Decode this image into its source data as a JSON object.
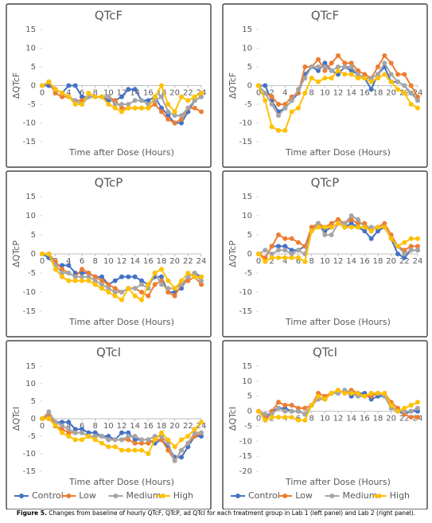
{
  "caption": {
    "label": "Figure 5.",
    "text": "Changes from baseline of hourly QTcF, QTcP, ad QTcI for each treatment group in Lab 1 (left panel) and Lab 2 (right panel)."
  },
  "chart_data": [
    {
      "type": "line",
      "title": "QTcF",
      "y_label": "ΔQTcF",
      "x_label": "Time after Dose (Hours)",
      "x": [
        0,
        1,
        2,
        3,
        4,
        5,
        6,
        7,
        8,
        9,
        10,
        11,
        12,
        13,
        14,
        15,
        16,
        17,
        18,
        19,
        20,
        21,
        22,
        23,
        24
      ],
      "xlim": [
        0,
        24
      ],
      "xticks": [
        0,
        2,
        4,
        6,
        8,
        10,
        12,
        14,
        16,
        18,
        20,
        22,
        24
      ],
      "ylim": [
        -15,
        15
      ],
      "yticks": [
        15,
        10,
        5,
        0,
        -5,
        -10,
        -15
      ],
      "series": [
        {
          "color": "#4472c4",
          "values": [
            0,
            0,
            -1,
            -2,
            0,
            0,
            -3,
            -3,
            -3,
            -3,
            -4,
            -4,
            -3,
            -1,
            -1,
            -4,
            -4,
            -3,
            -6,
            -8,
            -10,
            -10,
            -7,
            -4,
            -3
          ]
        },
        {
          "color": "#ed7d31",
          "values": [
            0,
            1,
            -2,
            -3,
            -3,
            -4,
            -4,
            -3,
            -3,
            -3,
            -3,
            -4,
            -6,
            -6,
            -6,
            -6,
            -6,
            -5,
            -7,
            -9,
            -10,
            -9,
            -6,
            -6,
            -7
          ]
        },
        {
          "color": "#a5a5a5",
          "values": [
            0,
            1,
            -1,
            -2,
            -3,
            -4,
            -5,
            -3,
            -3,
            -3,
            -3,
            -5,
            -5,
            -5,
            -4,
            -4,
            -5,
            -4,
            -3,
            -7,
            -8,
            -8,
            -6,
            -4,
            -3
          ]
        },
        {
          "color": "#ffc000",
          "values": [
            0,
            1,
            -1,
            -2,
            -3,
            -5,
            -5,
            -2,
            -3,
            -3,
            -5,
            -6,
            -7,
            -6,
            -6,
            -6,
            -6,
            -3,
            0,
            -5,
            -7,
            -3,
            -4,
            -3,
            -2
          ]
        }
      ]
    },
    {
      "type": "line",
      "title": "QTcF",
      "y_label": "ΔQTcF",
      "x_label": "Time after Dose (Hours)",
      "x": [
        0,
        1,
        2,
        3,
        4,
        5,
        6,
        7,
        8,
        9,
        10,
        11,
        12,
        13,
        14,
        15,
        16,
        17,
        18,
        19,
        20,
        21,
        22,
        23,
        24
      ],
      "xlim": [
        0,
        24
      ],
      "xticks": [
        0,
        2,
        4,
        6,
        8,
        10,
        12,
        14,
        16,
        18,
        20,
        22,
        24
      ],
      "ylim": [
        -15,
        15
      ],
      "yticks": [
        15,
        10,
        5,
        0,
        -5,
        -10,
        -15
      ],
      "series": [
        {
          "color": "#4472c4",
          "values": [
            0,
            0,
            -4,
            -7,
            -6,
            -4,
            -2,
            3,
            5,
            4,
            6,
            4,
            3,
            5,
            4,
            3,
            2,
            -1,
            3,
            5,
            1,
            1,
            0,
            -2,
            -4
          ]
        },
        {
          "color": "#ed7d31",
          "values": [
            0,
            -2,
            -3,
            -5,
            -5,
            -3,
            -2,
            5,
            5,
            7,
            4,
            6,
            8,
            6,
            6,
            4,
            3,
            2,
            5,
            8,
            6,
            3,
            3,
            0,
            -3
          ]
        },
        {
          "color": "#a5a5a5",
          "values": [
            0,
            -2,
            -5,
            -8,
            -6,
            -4,
            -1,
            2,
            5,
            5,
            5,
            4,
            5,
            5,
            5,
            3,
            2,
            2,
            3,
            6,
            3,
            1,
            0,
            -2,
            -4
          ]
        },
        {
          "color": "#ffc000",
          "values": [
            0,
            -4,
            -11,
            -12,
            -12,
            -7,
            -6,
            -2,
            2,
            1,
            2,
            2,
            4,
            3,
            3,
            2,
            2,
            1,
            2,
            3,
            1,
            -1,
            -2,
            -5,
            -6
          ]
        }
      ]
    },
    {
      "type": "line",
      "title": "QTcP",
      "y_label": "ΔQTcP",
      "x_label": "Time after Dose (Hours)",
      "x": [
        0,
        1,
        2,
        3,
        4,
        5,
        6,
        7,
        8,
        9,
        10,
        11,
        12,
        13,
        14,
        15,
        16,
        17,
        18,
        19,
        20,
        21,
        22,
        23,
        24
      ],
      "xlim": [
        0,
        24
      ],
      "xticks": [
        0,
        2,
        4,
        6,
        8,
        10,
        12,
        14,
        16,
        18,
        20,
        22,
        24
      ],
      "ylim": [
        -15,
        15
      ],
      "yticks": [
        15,
        10,
        5,
        0,
        -5,
        -10,
        -15
      ],
      "series": [
        {
          "color": "#4472c4",
          "values": [
            0,
            -1,
            -3,
            -3,
            -3,
            -5,
            -5,
            -5,
            -6,
            -6,
            -8,
            -7,
            -6,
            -6,
            -6,
            -7,
            -8,
            -6,
            -6,
            -10,
            -10,
            -9,
            -6,
            -5,
            -6
          ]
        },
        {
          "color": "#ed7d31",
          "values": [
            0,
            0,
            -2,
            -4,
            -5,
            -6,
            -4,
            -5,
            -6,
            -7,
            -8,
            -9,
            -10,
            -9,
            -9,
            -10,
            -11,
            -8,
            -7,
            -10,
            -11,
            -8,
            -7,
            -6,
            -8
          ]
        },
        {
          "color": "#a5a5a5",
          "values": [
            0,
            0,
            -3,
            -5,
            -5,
            -6,
            -6,
            -6,
            -7,
            -8,
            -9,
            -10,
            -10,
            -9,
            -9,
            -8,
            -9,
            -5,
            -8,
            -9,
            -9,
            -8,
            -6,
            -5,
            -7
          ]
        },
        {
          "color": "#ffc000",
          "values": [
            0,
            0,
            -4,
            -6,
            -7,
            -7,
            -7,
            -7,
            -8,
            -9,
            -10,
            -11,
            -12,
            -9,
            -11,
            -12,
            -8,
            -5,
            -4,
            -7,
            -9,
            -7,
            -5,
            -6,
            -6
          ]
        }
      ]
    },
    {
      "type": "line",
      "title": "QTcP",
      "y_label": "ΔQTcP",
      "x_label": "Time after Dose (Hours)",
      "x": [
        0,
        1,
        2,
        3,
        4,
        5,
        6,
        7,
        8,
        9,
        10,
        11,
        12,
        13,
        14,
        15,
        16,
        17,
        18,
        19,
        20,
        21,
        22,
        23,
        24
      ],
      "xlim": [
        0,
        24
      ],
      "xticks": [
        0,
        2,
        4,
        6,
        8,
        10,
        12,
        14,
        16,
        18,
        20,
        22,
        24
      ],
      "ylim": [
        -15,
        15
      ],
      "yticks": [
        15,
        10,
        5,
        0,
        -5,
        -10,
        -15
      ],
      "series": [
        {
          "color": "#4472c4",
          "values": [
            0,
            -1,
            2,
            2,
            2,
            1,
            1,
            2,
            6,
            8,
            6,
            7,
            8,
            7,
            8,
            7,
            6,
            4,
            6,
            7,
            4,
            0,
            -1,
            1,
            1
          ]
        },
        {
          "color": "#ed7d31",
          "values": [
            0,
            -1,
            2,
            5,
            4,
            4,
            3,
            2,
            7,
            8,
            7,
            8,
            9,
            8,
            9,
            8,
            8,
            6,
            7,
            8,
            5,
            2,
            1,
            2,
            2
          ]
        },
        {
          "color": "#a5a5a5",
          "values": [
            0,
            1,
            0,
            1,
            1,
            0,
            1,
            0,
            6,
            8,
            5,
            5,
            8,
            8,
            10,
            9,
            7,
            7,
            7,
            7,
            4,
            2,
            0,
            1,
            1
          ]
        },
        {
          "color": "#ffc000",
          "values": [
            0,
            -2,
            -1,
            -1,
            -1,
            -1,
            -1,
            -2,
            6,
            7,
            7,
            7,
            8,
            7,
            7,
            7,
            7,
            6,
            7,
            7,
            4,
            2,
            3,
            4,
            4
          ]
        }
      ]
    },
    {
      "type": "line",
      "title": "QTcI",
      "y_label": "ΔQTcI",
      "x_label": "Time after Dose (Hours)",
      "legend": "bottom",
      "x": [
        0,
        1,
        2,
        3,
        4,
        5,
        6,
        7,
        8,
        9,
        10,
        11,
        12,
        13,
        14,
        15,
        16,
        17,
        18,
        19,
        20,
        21,
        22,
        23,
        24
      ],
      "xlim": [
        0,
        24
      ],
      "xticks": [
        0,
        2,
        4,
        6,
        8,
        10,
        12,
        14,
        16,
        18,
        20,
        22,
        24
      ],
      "ylim": [
        -15,
        15
      ],
      "yticks": [
        15,
        10,
        5,
        0,
        -5,
        -10,
        -15
      ],
      "series": [
        {
          "name": "Control",
          "color": "#4472c4",
          "values": [
            0,
            0,
            -1,
            -1,
            -1,
            -3,
            -3,
            -4,
            -4,
            -5,
            -5,
            -6,
            -4,
            -4,
            -6,
            -6,
            -6,
            -7,
            -6,
            -8,
            -11,
            -11,
            -8,
            -5,
            -5
          ]
        },
        {
          "name": "Low",
          "color": "#ed7d31",
          "values": [
            0,
            1,
            -2,
            -3,
            -4,
            -4,
            -4,
            -5,
            -5,
            -5,
            -6,
            -6,
            -6,
            -6,
            -7,
            -7,
            -7,
            -6,
            -6,
            -9,
            -12,
            -9,
            -7,
            -5,
            -4
          ]
        },
        {
          "name": "Medium",
          "color": "#a5a5a5",
          "values": [
            0,
            2,
            -1,
            -2,
            -3,
            -4,
            -4,
            -5,
            -5,
            -5,
            -6,
            -6,
            -6,
            -5,
            -5,
            -6,
            -6,
            -5,
            -5,
            -7,
            -12,
            -9,
            -7,
            -4,
            -4
          ]
        },
        {
          "name": "High",
          "color": "#ffc000",
          "values": [
            0,
            0,
            -2,
            -4,
            -5,
            -6,
            -6,
            -5,
            -6,
            -7,
            -8,
            -8,
            -9,
            -9,
            -9,
            -9,
            -10,
            -6,
            -4,
            -6,
            -8,
            -6,
            -5,
            -3,
            -1
          ]
        }
      ]
    },
    {
      "type": "line",
      "title": "QTcI",
      "y_label": "ΔQTcI",
      "x_label": "Time after Dose (Hours)",
      "legend": "bottom",
      "x": [
        0,
        1,
        2,
        3,
        4,
        5,
        6,
        7,
        8,
        9,
        10,
        11,
        12,
        13,
        14,
        15,
        16,
        17,
        18,
        19,
        20,
        21,
        22,
        23,
        24
      ],
      "xlim": [
        0,
        24
      ],
      "xticks": [
        0,
        2,
        4,
        6,
        8,
        10,
        12,
        14,
        16,
        18,
        20,
        22,
        24
      ],
      "ylim": [
        -20,
        15
      ],
      "yticks": [
        15,
        10,
        5,
        0,
        -5,
        -10,
        -15,
        -20
      ],
      "series": [
        {
          "name": "Control",
          "color": "#4472c4",
          "values": [
            0,
            -3,
            0,
            1,
            1,
            0,
            0,
            -1,
            2,
            5,
            4,
            6,
            6,
            7,
            5,
            6,
            6,
            4,
            5,
            5,
            2,
            0,
            -1,
            0,
            0
          ]
        },
        {
          "name": "Low",
          "color": "#ed7d31",
          "values": [
            0,
            -2,
            0,
            3,
            2,
            2,
            1,
            1,
            2,
            6,
            5,
            6,
            7,
            6,
            7,
            6,
            5,
            5,
            6,
            6,
            3,
            1,
            -1,
            -2,
            -2
          ]
        },
        {
          "name": "Medium",
          "color": "#a5a5a5",
          "values": [
            0,
            -1,
            -1,
            1,
            0,
            0,
            0,
            -1,
            2,
            4,
            4,
            6,
            6,
            7,
            6,
            5,
            5,
            6,
            6,
            5,
            1,
            0,
            0,
            0,
            1
          ]
        },
        {
          "name": "High",
          "color": "#ffc000",
          "values": [
            0,
            -3,
            -2,
            -2,
            -2,
            -2,
            -3,
            -3,
            2,
            5,
            4,
            6,
            7,
            6,
            6,
            6,
            5,
            6,
            6,
            6,
            2,
            0,
            1,
            2,
            3
          ]
        }
      ]
    }
  ]
}
